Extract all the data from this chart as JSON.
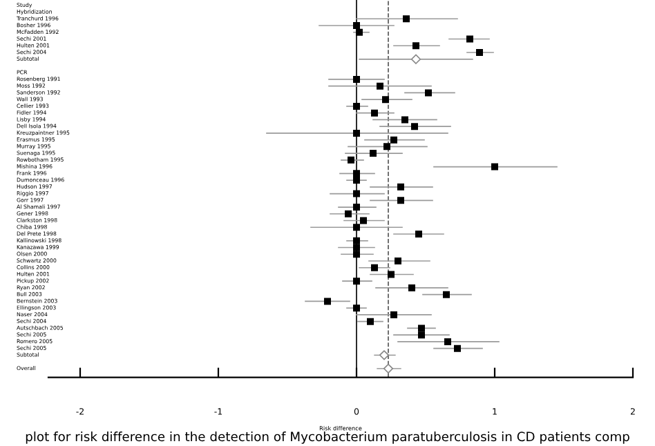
{
  "chart_data": {
    "type": "scatter",
    "orientation": "horizontal",
    "xlabel": "Risk difference",
    "categories": [
      "Study",
      "Hybridization",
      "Tranchurd 1996",
      "Bosher 1996",
      "McFadden 1992",
      "Sechi 2001",
      "Hulten 2001",
      "Sechi 2004",
      "Subtotal",
      null,
      "PCR",
      "Rosenberg 1991",
      "Moss 1992",
      "Sanderson 1992",
      "Wall 1993",
      "Cellier 1993",
      "Fidler 1994",
      "Lisby 1994",
      "Dell Isola 1994",
      "Kreuzpaintner 1995",
      "Erasmus 1995",
      "Murray 1995",
      "Suenaga 1995",
      "Rowbotham 1995",
      "Mishina 1996",
      "Frank 1996",
      "Dumonceau 1996",
      "Hudson 1997",
      "Riggio 1997",
      "Gorr 1997",
      "Al Shamali 1997",
      "Gener 1998",
      "Clarkston 1998",
      "Chiba 1998",
      "Del Prete 1998",
      "Kallinowski 1998",
      "Kanazawa 1999",
      "Olsen 2000",
      "Schwartz 2000",
      "Collins 2000",
      "Hulten 2001",
      "Pickup 2002",
      "Ryan 2002",
      "Bull 2003",
      "Bernstein 2003",
      "Ellingson 2003",
      "Naser 2004",
      "Sechi 2004",
      "Autschbach 2005",
      "Sechi 2005",
      "Romero 2005",
      "Sechi 2005",
      "Subtotal",
      null,
      "Overall"
    ],
    "series": [
      {
        "color": "#000000",
        "marker": "square",
        "values": [
          null,
          null,
          0.36,
          0,
          0.02,
          0.82,
          0.43,
          0.89,
          null,
          null,
          null,
          0,
          0.17,
          0.52,
          0.21,
          0,
          0.13,
          0.35,
          0.42,
          0,
          0.27,
          0.22,
          0.12,
          -0.04,
          1.0,
          0,
          0,
          0.32,
          0,
          0.32,
          0,
          -0.06,
          0.05,
          0,
          0.45,
          0,
          0,
          0,
          0.3,
          0.13,
          0.25,
          0,
          0.4,
          0.65,
          -0.21,
          0,
          0.27,
          0.1,
          0.47,
          0.47,
          0.66,
          0.73,
          null,
          null,
          null
        ],
        "errors": [
          null,
          null,
          [
            0.0,
            0.73
          ],
          [
            -0.27,
            0.27
          ],
          [
            -0.02,
            0.09
          ],
          [
            0.67,
            0.96
          ],
          [
            0.27,
            0.6
          ],
          [
            0.8,
            0.99
          ],
          null,
          null,
          null,
          [
            -0.2,
            0.2
          ],
          [
            -0.2,
            0.54
          ],
          [
            0.35,
            0.71
          ],
          [
            0.04,
            0.4
          ],
          [
            -0.07,
            0.08
          ],
          [
            0.0,
            0.27
          ],
          [
            0.12,
            0.58
          ],
          [
            0.17,
            0.68
          ],
          [
            -0.65,
            0.66
          ],
          [
            0.06,
            0.49
          ],
          [
            -0.06,
            0.51
          ],
          [
            -0.08,
            0.33
          ],
          [
            -0.11,
            0.05
          ],
          [
            0.56,
            1.45
          ],
          [
            -0.12,
            0.13
          ],
          [
            -0.07,
            0.07
          ],
          [
            0.1,
            0.55
          ],
          [
            -0.19,
            0.2
          ],
          [
            0.1,
            0.55
          ],
          [
            -0.13,
            0.14
          ],
          [
            -0.19,
            0.09
          ],
          [
            -0.09,
            0.2
          ],
          [
            -0.33,
            0.33
          ],
          [
            0.27,
            0.63
          ],
          [
            -0.07,
            0.08
          ],
          [
            -0.13,
            0.13
          ],
          [
            -0.11,
            0.12
          ],
          [
            0.09,
            0.53
          ],
          [
            0.02,
            0.24
          ],
          [
            0.1,
            0.41
          ],
          [
            -0.1,
            0.11
          ],
          [
            0.14,
            0.66
          ],
          [
            0.48,
            0.83
          ],
          [
            -0.37,
            -0.05
          ],
          [
            -0.07,
            0.07
          ],
          [
            0.0,
            0.54
          ],
          [
            0.01,
            0.19
          ],
          [
            0.37,
            0.57
          ],
          [
            0.27,
            0.67
          ],
          [
            0.3,
            1.03
          ],
          [
            0.56,
            0.91
          ],
          null,
          null,
          null
        ]
      },
      {
        "color": "#888888",
        "marker": "diamond",
        "values": [
          null,
          null,
          null,
          null,
          null,
          null,
          null,
          null,
          0.43,
          null,
          null,
          null,
          null,
          null,
          null,
          null,
          null,
          null,
          null,
          null,
          null,
          null,
          null,
          null,
          null,
          null,
          null,
          null,
          null,
          null,
          null,
          null,
          null,
          null,
          null,
          null,
          null,
          null,
          null,
          null,
          null,
          null,
          null,
          null,
          null,
          null,
          null,
          null,
          null,
          null,
          null,
          null,
          0.2,
          null,
          0.23
        ],
        "errors": [
          null,
          null,
          null,
          null,
          null,
          null,
          null,
          null,
          [
            0.02,
            0.84
          ],
          null,
          null,
          null,
          null,
          null,
          null,
          null,
          null,
          null,
          null,
          null,
          null,
          null,
          null,
          null,
          null,
          null,
          null,
          null,
          null,
          null,
          null,
          null,
          null,
          null,
          null,
          null,
          null,
          null,
          null,
          null,
          null,
          null,
          null,
          null,
          null,
          null,
          null,
          null,
          null,
          null,
          null,
          null,
          [
            0.13,
            0.28
          ],
          null,
          [
            0.15,
            0.32
          ]
        ]
      }
    ],
    "xlim": [
      -2.23,
      2.0
    ],
    "xticks": [
      -2,
      -1,
      0,
      1,
      2
    ],
    "ref_lines": [
      {
        "axis": "x",
        "value": 0,
        "line_style": "solid",
        "color": "#000000"
      },
      {
        "axis": "x",
        "value": 0.23,
        "line_style": "dashed",
        "color": "#555555"
      }
    ],
    "annotations": [
      "plot for risk difference in the detection of Mycobacterium paratuberculosis in CD patients comp"
    ]
  }
}
